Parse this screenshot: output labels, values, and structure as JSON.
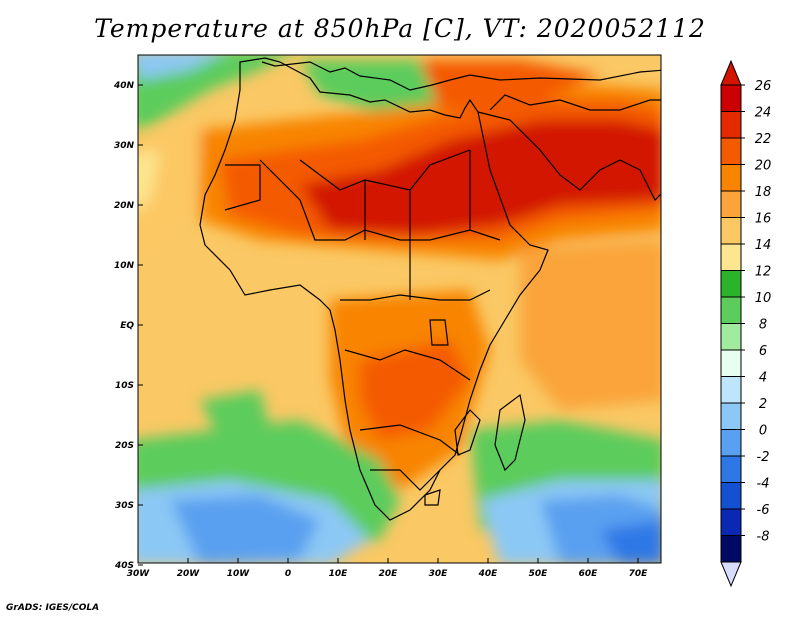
{
  "title": "Temperature at 850hPa [C], VT: 2020052112",
  "credit": "GrADS: IGES/COLA",
  "map": {
    "lat_labels": [
      "40N",
      "30N",
      "20N",
      "10N",
      "EQ",
      "10S",
      "20S",
      "30S",
      "40S"
    ],
    "lon_labels": [
      "30W",
      "20W",
      "10W",
      "0",
      "10E",
      "20E",
      "30E",
      "40E",
      "50E",
      "60E",
      "70E"
    ]
  },
  "colorbar": {
    "labels": [
      "26",
      "24",
      "22",
      "20",
      "18",
      "16",
      "14",
      "12",
      "10",
      "8",
      "6",
      "4",
      "2",
      "0",
      "-2",
      "-4",
      "-6",
      "-8"
    ],
    "colors": [
      "#cc0000",
      "#e62a00",
      "#f45a00",
      "#f88400",
      "#faa43a",
      "#fcc864",
      "#fce690",
      "#2bb32b",
      "#5ccc5c",
      "#a0eba0",
      "#e6fff0",
      "#bde6fa",
      "#8cc8f5",
      "#5aa0f0",
      "#2d78e6",
      "#1450d2",
      "#0a28b4",
      "#000a64"
    ],
    "top_color": "#d21400",
    "bottom_color": "#d8dcff"
  }
}
